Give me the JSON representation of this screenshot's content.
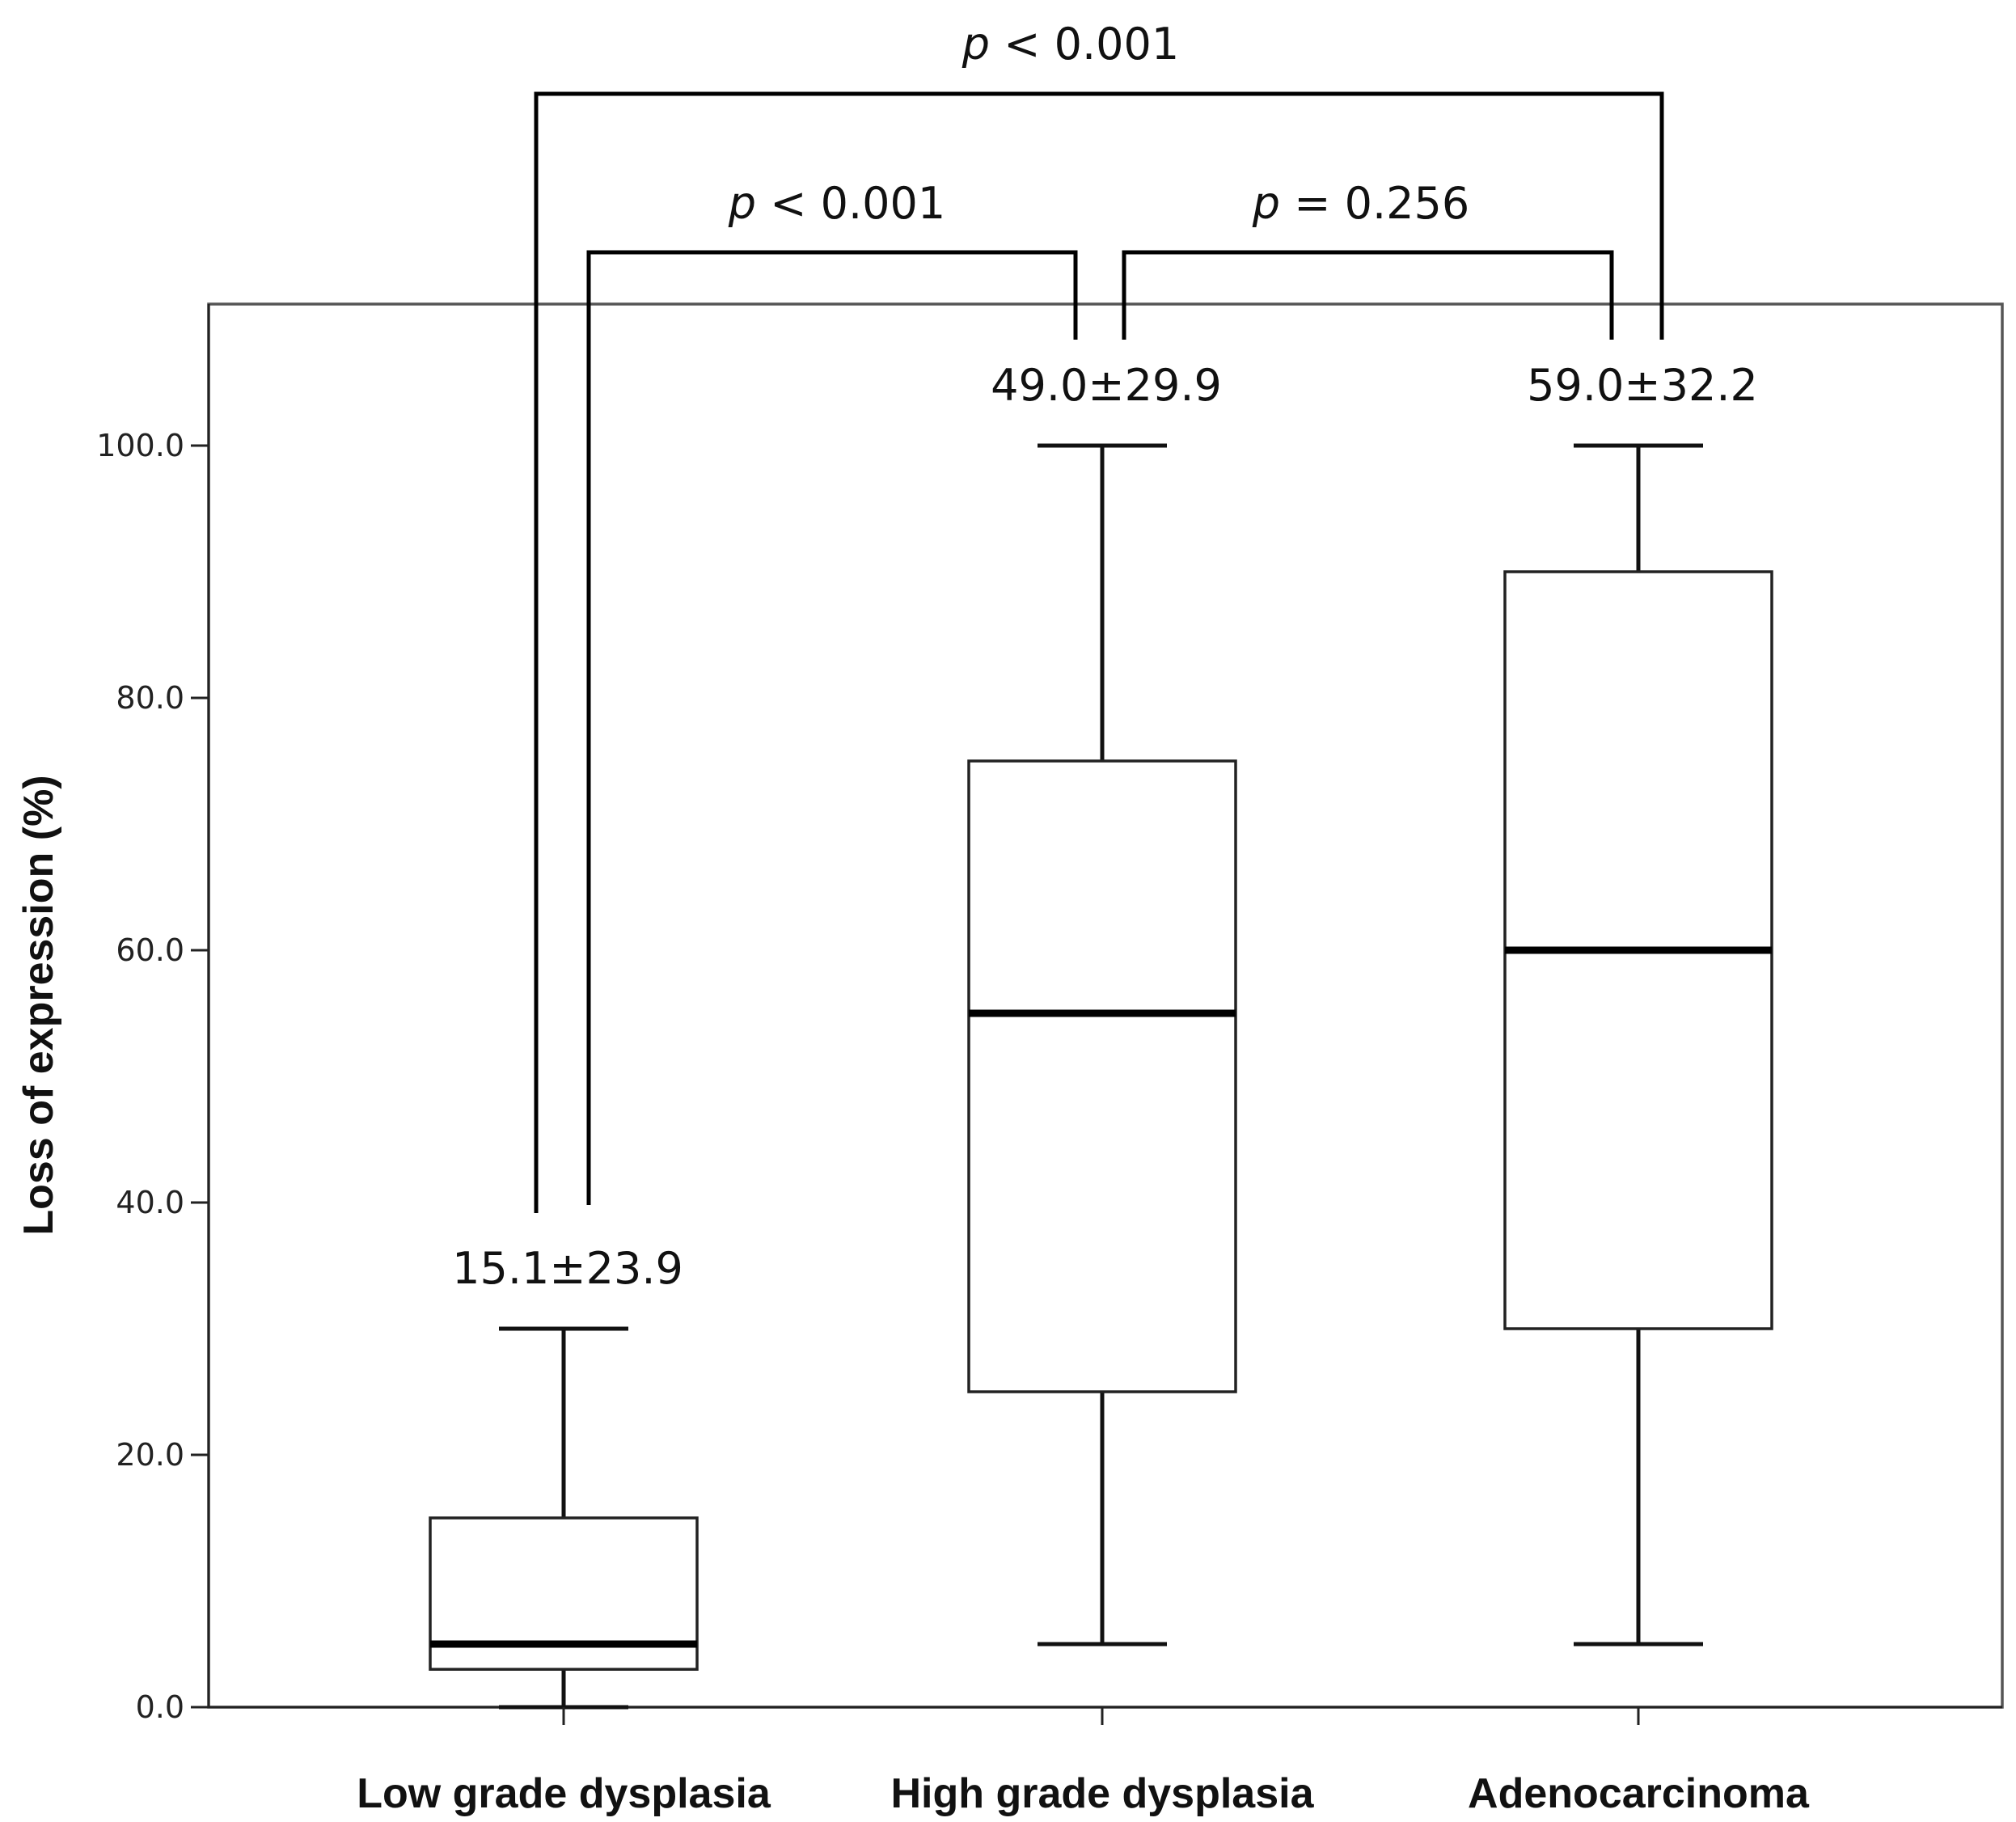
{
  "chart_data": {
    "type": "box",
    "ylabel": "Loss of expression (%)",
    "xlabel": "",
    "ylim": [
      0,
      110
    ],
    "yticks": [
      0,
      20,
      40,
      60,
      80,
      100
    ],
    "ytick_labels": [
      "0.0",
      "20.0",
      "40.0",
      "60.0",
      "80.0",
      "100.0"
    ],
    "grid": false,
    "categories": [
      "Low grade dysplasia",
      "High grade dysplasia",
      "Adenocarcinoma"
    ],
    "boxes": [
      {
        "category": "Low grade dysplasia",
        "min": 0,
        "q1": 3,
        "median": 5,
        "q3": 15,
        "max": 30,
        "stat_label": "15.1±23.9"
      },
      {
        "category": "High grade dysplasia",
        "min": 5,
        "q1": 25,
        "median": 55,
        "q3": 75,
        "max": 100,
        "stat_label": "49.0±29.9"
      },
      {
        "category": "Adenocarcinoma",
        "min": 5,
        "q1": 30,
        "median": 60,
        "q3": 90,
        "max": 100,
        "stat_label": "59.0±32.2"
      }
    ],
    "comparisons": [
      {
        "from": "Low grade dysplasia",
        "to": "High grade dysplasia",
        "p_symbol": "p",
        "p_text": "< 0.001"
      },
      {
        "from": "High grade dysplasia",
        "to": "Adenocarcinoma",
        "p_symbol": "p",
        "p_text": "= 0.256"
      },
      {
        "from": "Low grade dysplasia",
        "to": "Adenocarcinoma",
        "p_symbol": "p",
        "p_text": "< 0.001"
      }
    ]
  }
}
